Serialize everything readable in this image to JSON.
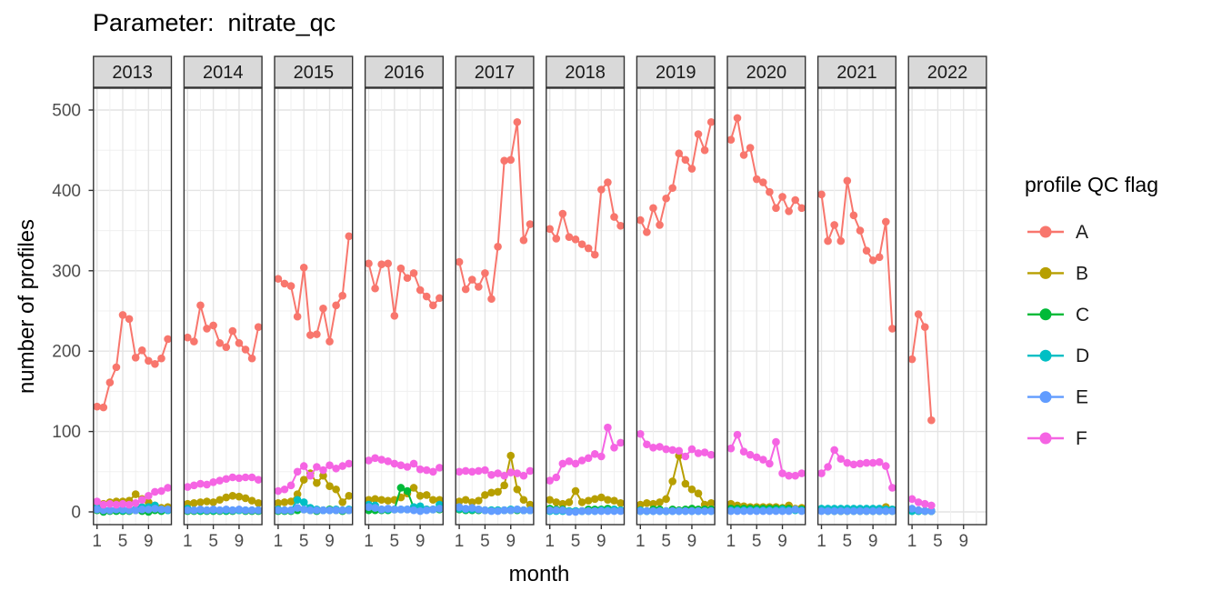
{
  "chart_data": {
    "type": "line",
    "title": "Parameter:  nitrate_qc",
    "xlabel": "month",
    "ylabel": "number of profiles",
    "legend_title": "profile QC flag",
    "legend_position": "right",
    "grid": true,
    "facets": [
      "2013",
      "2014",
      "2015",
      "2016",
      "2017",
      "2018",
      "2019",
      "2020",
      "2021",
      "2022"
    ],
    "x_ticks": [
      1,
      5,
      9
    ],
    "x_minor_ticks": [
      3,
      7,
      11
    ],
    "y_ticks": [
      0,
      100,
      200,
      300,
      400,
      500
    ],
    "y_minor_ticks": [
      50,
      150,
      250,
      350,
      450
    ],
    "ylim": [
      0,
      500
    ],
    "xlim": [
      1,
      12
    ],
    "series": [
      {
        "name": "A",
        "color": "#F8766D",
        "values": {
          "2013": [
            131,
            130,
            161,
            180,
            245,
            240,
            192,
            201,
            188,
            184,
            191,
            215
          ],
          "2014": [
            217,
            212,
            257,
            228,
            232,
            210,
            205,
            225,
            210,
            202,
            191,
            230
          ],
          "2015": [
            290,
            284,
            281,
            243,
            304,
            220,
            221,
            253,
            212,
            257,
            269,
            343
          ],
          "2016": [
            309,
            278,
            308,
            309,
            244,
            303,
            291,
            297,
            276,
            268,
            257,
            266
          ],
          "2017": [
            311,
            277,
            289,
            280,
            297,
            265,
            330,
            437,
            438,
            485,
            338,
            358
          ],
          "2018": [
            352,
            340,
            371,
            342,
            339,
            333,
            328,
            320,
            401,
            410,
            367,
            356
          ],
          "2019": [
            363,
            348,
            378,
            357,
            390,
            403,
            446,
            438,
            427,
            470,
            450,
            485
          ],
          "2020": [
            463,
            490,
            444,
            453,
            414,
            410,
            398,
            378,
            392,
            374,
            388,
            378
          ],
          "2021": [
            395,
            337,
            357,
            337,
            412,
            369,
            350,
            325,
            313,
            317,
            361,
            228
          ],
          "2022": [
            190,
            246,
            230,
            114,
            null,
            null,
            null,
            null,
            null,
            null,
            null,
            null
          ]
        }
      },
      {
        "name": "B",
        "color": "#B79F00",
        "values": {
          "2013": [
            8,
            10,
            12,
            13,
            13,
            14,
            22,
            16,
            12,
            8,
            5,
            6
          ],
          "2014": [
            10,
            11,
            12,
            13,
            12,
            15,
            18,
            20,
            19,
            17,
            14,
            11
          ],
          "2015": [
            11,
            12,
            13,
            22,
            40,
            48,
            36,
            45,
            32,
            28,
            12,
            20
          ],
          "2016": [
            15,
            16,
            15,
            14,
            15,
            18,
            23,
            30,
            20,
            21,
            15,
            15
          ],
          "2017": [
            13,
            15,
            12,
            14,
            21,
            24,
            25,
            33,
            70,
            28,
            15,
            9
          ],
          "2018": [
            15,
            12,
            10,
            12,
            26,
            12,
            14,
            16,
            18,
            15,
            14,
            11
          ],
          "2019": [
            9,
            11,
            10,
            12,
            16,
            38,
            70,
            35,
            28,
            23,
            9,
            11
          ],
          "2020": [
            10,
            8,
            7,
            6,
            6,
            6,
            6,
            6,
            5,
            8,
            4,
            5
          ],
          "2021": [
            2,
            2,
            2,
            1,
            2,
            2,
            2,
            2,
            2,
            2,
            6,
            3
          ],
          "2022": [
            3,
            2,
            1,
            1,
            null,
            null,
            null,
            null,
            null,
            null,
            null,
            null
          ]
        }
      },
      {
        "name": "C",
        "color": "#00BA38",
        "values": {
          "2013": [
            2,
            0,
            1,
            1,
            1,
            1,
            2,
            1,
            0,
            2,
            1,
            2
          ],
          "2014": [
            1,
            1,
            1,
            1,
            1,
            1,
            1,
            1,
            2,
            1,
            1,
            1
          ],
          "2015": [
            1,
            1,
            1,
            2,
            3,
            2,
            1,
            2,
            3,
            2,
            1,
            2
          ],
          "2016": [
            2,
            2,
            2,
            2,
            3,
            30,
            26,
            5,
            3,
            3,
            3,
            3
          ],
          "2017": [
            3,
            2,
            2,
            2,
            2,
            2,
            2,
            2,
            2,
            2,
            2,
            2
          ],
          "2018": [
            4,
            3,
            3,
            1,
            1,
            1,
            3,
            3,
            3,
            4,
            3,
            2
          ],
          "2019": [
            1,
            1,
            3,
            3,
            1,
            3,
            2,
            3,
            4,
            3,
            3,
            3
          ],
          "2020": [
            4,
            4,
            4,
            4,
            4,
            4,
            4,
            4,
            4,
            4,
            3,
            3
          ],
          "2021": [
            3,
            1,
            1,
            1,
            1,
            1,
            1,
            1,
            1,
            1,
            1,
            1
          ],
          "2022": [
            1,
            1,
            1,
            1,
            null,
            null,
            null,
            null,
            null,
            null,
            null,
            null
          ]
        }
      },
      {
        "name": "D",
        "color": "#00BFC4",
        "values": {
          "2013": [
            5,
            3,
            2,
            3,
            2,
            2,
            3,
            6,
            6,
            8,
            3,
            2
          ],
          "2014": [
            4,
            2,
            2,
            2,
            2,
            2,
            2,
            2,
            2,
            2,
            2,
            2
          ],
          "2015": [
            3,
            2,
            2,
            15,
            12,
            5,
            3,
            2,
            2,
            3,
            2,
            3
          ],
          "2016": [
            9,
            8,
            3,
            3,
            3,
            3,
            3,
            6,
            7,
            3,
            3,
            9
          ],
          "2017": [
            4,
            3,
            3,
            3,
            2,
            2,
            2,
            2,
            3,
            3,
            2,
            2
          ],
          "2018": [
            1,
            1,
            1,
            1,
            1,
            1,
            1,
            1,
            2,
            2,
            3,
            2
          ],
          "2019": [
            2,
            1,
            1,
            1,
            1,
            1,
            1,
            1,
            1,
            1,
            1,
            1
          ],
          "2020": [
            2,
            2,
            2,
            2,
            2,
            2,
            2,
            2,
            3,
            2,
            2,
            2
          ],
          "2021": [
            4,
            4,
            4,
            4,
            4,
            4,
            4,
            4,
            4,
            4,
            3,
            3
          ],
          "2022": [
            1,
            1,
            1,
            1,
            null,
            null,
            null,
            null,
            null,
            null,
            null,
            null
          ]
        }
      },
      {
        "name": "E",
        "color": "#619CFF",
        "values": {
          "2013": [
            3,
            2,
            2,
            3,
            3,
            2,
            2,
            3,
            3,
            4,
            3,
            3
          ],
          "2014": [
            2,
            2,
            3,
            2,
            3,
            2,
            3,
            2,
            3,
            2,
            2,
            2
          ],
          "2015": [
            2,
            2,
            2,
            5,
            3,
            2,
            2,
            2,
            2,
            2,
            2,
            2
          ],
          "2016": [
            6,
            5,
            3,
            4,
            3,
            3,
            3,
            2,
            1,
            2,
            3,
            4
          ],
          "2017": [
            6,
            4,
            5,
            3,
            2,
            1,
            1,
            2,
            2,
            3,
            2,
            2
          ],
          "2018": [
            2,
            2,
            2,
            0,
            0,
            1,
            1,
            1,
            1,
            1,
            1,
            1
          ],
          "2019": [
            1,
            1,
            1,
            1,
            1,
            1,
            1,
            1,
            1,
            1,
            1,
            1
          ],
          "2020": [
            1,
            1,
            1,
            1,
            1,
            1,
            1,
            1,
            1,
            1,
            3,
            1
          ],
          "2021": [
            1,
            1,
            1,
            1,
            1,
            1,
            1,
            1,
            1,
            1,
            1,
            1
          ],
          "2022": [
            4,
            2,
            1,
            1,
            null,
            null,
            null,
            null,
            null,
            null,
            null,
            null
          ]
        }
      },
      {
        "name": "F",
        "color": "#F564E3",
        "values": {
          "2013": [
            13,
            9,
            10,
            9,
            10,
            9,
            11,
            15,
            20,
            25,
            26,
            30
          ],
          "2014": [
            31,
            33,
            35,
            34,
            37,
            39,
            41,
            43,
            42,
            43,
            43,
            40
          ],
          "2015": [
            26,
            28,
            33,
            50,
            57,
            45,
            56,
            52,
            58,
            54,
            57,
            60
          ],
          "2016": [
            64,
            67,
            65,
            63,
            60,
            58,
            56,
            60,
            53,
            52,
            50,
            55
          ],
          "2017": [
            50,
            51,
            50,
            51,
            52,
            46,
            48,
            45,
            49,
            48,
            45,
            51
          ],
          "2018": [
            39,
            43,
            60,
            63,
            60,
            64,
            67,
            72,
            69,
            105,
            80,
            86
          ],
          "2019": [
            97,
            84,
            80,
            81,
            78,
            77,
            76,
            69,
            78,
            73,
            74,
            71
          ],
          "2020": [
            79,
            96,
            75,
            71,
            68,
            65,
            60,
            87,
            48,
            45,
            45,
            48
          ],
          "2021": [
            48,
            56,
            77,
            66,
            61,
            59,
            60,
            61,
            61,
            62,
            57,
            30
          ],
          "2022": [
            16,
            12,
            10,
            8,
            null,
            null,
            null,
            null,
            null,
            null,
            null,
            null
          ]
        }
      }
    ],
    "style": {
      "panel_bg": "#FFFFFF",
      "panel_border": "#333333",
      "strip_bg": "#D9D9D9",
      "strip_border": "#333333",
      "grid_major": "#E4E4E4",
      "grid_minor": "#F0F0F0",
      "tick_label_color": "#4D4D4D",
      "tick_color": "#333333"
    }
  }
}
